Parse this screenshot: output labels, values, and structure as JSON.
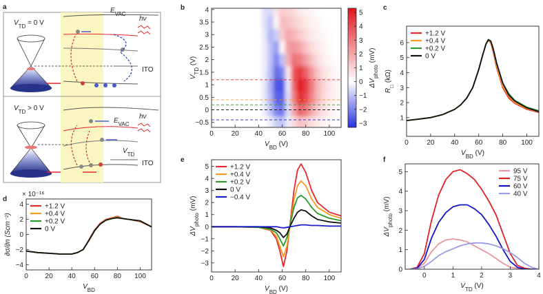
{
  "diagram": {
    "panel": "a",
    "top": {
      "vtd": [
        "V",
        "TD",
        " = 0 V"
      ],
      "evac": [
        "E",
        "VAC"
      ],
      "hv": "hν",
      "ito": "ITO"
    },
    "bottom": {
      "vtd": [
        "V",
        "TD",
        " > 0 V"
      ],
      "evac": [
        "E",
        "VAC"
      ],
      "hv": "hν",
      "vtd_label": [
        "V",
        "TD"
      ],
      "ito": "ITO"
    }
  },
  "chart_data": [
    {
      "panel": "b",
      "type": "heatmap",
      "x": [
        0,
        5,
        10,
        15,
        20,
        25,
        30,
        35,
        40,
        45,
        50,
        55,
        60,
        65,
        70,
        75,
        80,
        85,
        90,
        95,
        100,
        105,
        110
      ],
      "y": [
        -0.5,
        0,
        0.5,
        1,
        1.5,
        2,
        2.5,
        3,
        3.5,
        4
      ],
      "z": [
        [
          0,
          0,
          0,
          0,
          0,
          0,
          0,
          0,
          0,
          0,
          -0.3,
          -0.8,
          -1.0,
          -0.3,
          0.8,
          1.5,
          1.2,
          0.8,
          0.5,
          0.3,
          0.2,
          0.1,
          0
        ],
        [
          0,
          0,
          0,
          0,
          0,
          0,
          0,
          0,
          0,
          -0.3,
          -1.0,
          -2.0,
          -2.2,
          -0.5,
          2.0,
          3.5,
          3.0,
          2.0,
          1.2,
          0.7,
          0.4,
          0.2,
          0.1
        ],
        [
          0,
          0,
          0,
          0,
          0,
          0,
          0,
          0,
          0,
          -0.4,
          -1.2,
          -2.5,
          -2.6,
          -0.5,
          3.0,
          4.8,
          4.2,
          2.8,
          1.6,
          0.9,
          0.5,
          0.3,
          0.1
        ],
        [
          0,
          0,
          0,
          0,
          0,
          0,
          0,
          0,
          0,
          -0.4,
          -1.3,
          -2.7,
          -2.8,
          -0.3,
          3.5,
          5.2,
          4.5,
          3.0,
          1.7,
          1.0,
          0.6,
          0.3,
          0.1
        ],
        [
          0,
          0,
          0,
          0,
          0,
          0,
          0,
          0,
          0,
          -0.3,
          -1.1,
          -2.4,
          -2.0,
          0.5,
          3.8,
          4.5,
          3.6,
          2.3,
          1.3,
          0.7,
          0.4,
          0.2,
          0.1
        ],
        [
          0,
          0,
          0,
          0,
          0,
          0,
          0,
          0,
          0,
          -0.3,
          -1.0,
          -2.0,
          -1.0,
          1.8,
          3.2,
          3.0,
          2.2,
          1.4,
          0.8,
          0.4,
          0.2,
          0.1,
          0
        ],
        [
          0,
          0,
          0,
          0,
          0,
          0,
          0,
          0,
          0,
          -0.3,
          -1.0,
          -1.6,
          0.2,
          2.2,
          2.4,
          2.0,
          1.4,
          0.8,
          0.5,
          0.3,
          0.1,
          0,
          0
        ],
        [
          0,
          0,
          0,
          0,
          0,
          0,
          0,
          0,
          0,
          -0.4,
          -1.2,
          -0.8,
          1.2,
          2.0,
          1.6,
          1.2,
          0.8,
          0.5,
          0.3,
          0.2,
          0.1,
          0,
          0
        ],
        [
          0,
          0,
          0,
          0,
          0,
          0,
          0,
          0,
          0,
          -0.5,
          -1.0,
          0.2,
          1.5,
          1.4,
          1.1,
          0.8,
          0.5,
          0.3,
          0.2,
          0.1,
          0,
          0,
          0
        ],
        [
          0,
          0,
          0,
          0,
          0,
          0,
          0,
          0,
          0,
          -0.5,
          -0.6,
          0.6,
          1.2,
          1.0,
          0.8,
          0.5,
          0.3,
          0.2,
          0.1,
          0,
          0,
          0,
          0
        ]
      ],
      "hlines": [
        {
          "value": 1.2,
          "color": "#e8262b"
        },
        {
          "value": 0.4,
          "color": "#f59a23"
        },
        {
          "value": 0.2,
          "color": "#2a9a2a"
        },
        {
          "value": 0,
          "color": "#222222"
        },
        {
          "value": -0.4,
          "color": "#1c1ccc"
        }
      ],
      "xlim": [
        0,
        110
      ],
      "ylim": [
        -0.7,
        4.05
      ],
      "xticks": [
        0,
        20,
        40,
        60,
        80,
        100
      ],
      "yticks": [
        {
          "value": -0.5,
          "label": "−0.5"
        },
        0,
        0.5,
        1,
        1.5,
        2,
        2.5,
        3,
        3.5,
        4
      ],
      "xlabel": [
        "V",
        "BD",
        " (V)"
      ],
      "ylabel": [
        "V",
        "TD",
        " (V)"
      ],
      "clim": [
        -3.3,
        5.3
      ],
      "cticks": [
        {
          "value": -3,
          "label": "−3"
        },
        {
          "value": -2,
          "label": "−2"
        },
        {
          "value": -1,
          "label": "−1"
        },
        0,
        1,
        2,
        3,
        4,
        5
      ],
      "clabel": [
        "ΔV",
        "photo",
        " (mV)"
      ]
    },
    {
      "panel": "c",
      "type": "line",
      "x": [
        0,
        10,
        20,
        30,
        40,
        45,
        50,
        55,
        60,
        63,
        66,
        68,
        70,
        72,
        75,
        80,
        85,
        90,
        100,
        110
      ],
      "series": [
        {
          "name": "+1.2 V",
          "color": "#e8262b",
          "values": [
            0.8,
            0.9,
            1.0,
            1.2,
            1.55,
            1.85,
            2.3,
            3.0,
            4.2,
            5.1,
            5.9,
            6.15,
            6.0,
            5.4,
            4.3,
            3.0,
            2.3,
            1.95,
            1.55,
            1.35
          ]
        },
        {
          "name": "+0.4 V",
          "color": "#f59a23",
          "values": [
            0.8,
            0.9,
            1.0,
            1.2,
            1.55,
            1.85,
            2.3,
            3.0,
            4.2,
            5.1,
            5.9,
            6.15,
            6.05,
            5.5,
            4.4,
            3.1,
            2.4,
            2.0,
            1.6,
            1.38
          ]
        },
        {
          "name": "+0.2 V",
          "color": "#2a9a2a",
          "values": [
            0.8,
            0.9,
            1.0,
            1.2,
            1.55,
            1.85,
            2.3,
            3.0,
            4.2,
            5.1,
            5.9,
            6.2,
            6.1,
            5.6,
            4.6,
            3.3,
            2.6,
            2.15,
            1.7,
            1.45
          ]
        },
        {
          "name": "0 V",
          "color": "#111111",
          "values": [
            0.8,
            0.9,
            1.0,
            1.2,
            1.55,
            1.85,
            2.3,
            3.0,
            4.2,
            5.1,
            5.9,
            6.2,
            6.1,
            5.6,
            4.6,
            3.3,
            2.5,
            2.1,
            1.65,
            1.4
          ]
        }
      ],
      "xlim": [
        0,
        110
      ],
      "ylim": [
        -0.25,
        7.1
      ],
      "xticks": [
        0,
        20,
        40,
        60,
        80,
        100
      ],
      "yticks": [
        1,
        2,
        3,
        4,
        5,
        6
      ],
      "xlabel": [
        "V",
        "BD",
        " (V)"
      ],
      "ylabel": [
        "R",
        "□",
        " (kΩ)"
      ],
      "legend": "upper left"
    },
    {
      "panel": "d",
      "type": "line",
      "x": [
        0,
        10,
        20,
        30,
        40,
        45,
        50,
        55,
        60,
        65,
        70,
        75,
        80,
        85,
        90,
        100,
        110
      ],
      "series": [
        {
          "name": "+1.2 V",
          "color": "#e8262b",
          "values": [
            -2.2,
            -2.4,
            -2.5,
            -2.6,
            -2.6,
            -2.4,
            -2.0,
            -0.7,
            0.6,
            1.5,
            2.0,
            2.2,
            2.4,
            2.1,
            2.0,
            1.7,
            1.0
          ]
        },
        {
          "name": "+0.4 V",
          "color": "#f59a23",
          "values": [
            -2.2,
            -2.4,
            -2.5,
            -2.6,
            -2.6,
            -2.4,
            -2.0,
            -0.75,
            0.55,
            1.45,
            1.95,
            2.15,
            2.3,
            2.1,
            2.0,
            1.75,
            1.0
          ]
        },
        {
          "name": "+0.2 V",
          "color": "#2a9a2a",
          "values": [
            -2.2,
            -2.4,
            -2.5,
            -2.6,
            -2.6,
            -2.4,
            -2.0,
            -0.8,
            0.5,
            1.4,
            1.9,
            2.1,
            2.25,
            2.1,
            2.0,
            1.8,
            1.0
          ]
        },
        {
          "name": "0 V",
          "color": "#111111",
          "values": [
            -2.2,
            -2.4,
            -2.5,
            -2.6,
            -2.6,
            -2.4,
            -2.0,
            -0.8,
            0.5,
            1.4,
            1.9,
            2.1,
            2.2,
            2.1,
            2.0,
            1.8,
            1.0
          ]
        }
      ],
      "xlim": [
        0,
        110
      ],
      "ylim": [
        -4.7,
        4.7
      ],
      "xticks": [
        0,
        20,
        40,
        60,
        80,
        100
      ],
      "yticks": [
        {
          "value": -4,
          "label": "−4"
        },
        {
          "value": -2,
          "label": "−2"
        },
        0,
        2,
        4
      ],
      "multiplier": "× 10⁻¹⁶",
      "xlabel": [
        "V",
        "BD",
        ""
      ],
      "ylabel": [
        "∂σ/∂n (Scm⁻²)"
      ],
      "legend": "upper left"
    },
    {
      "panel": "e",
      "type": "line",
      "x": [
        0,
        20,
        40,
        50,
        55,
        58,
        61,
        64,
        67,
        70,
        73,
        76,
        80,
        85,
        90,
        100,
        110
      ],
      "series": [
        {
          "name": "+1.2 V",
          "color": "#e8262b",
          "values": [
            0,
            0,
            -0.05,
            -0.3,
            -1.0,
            -2.0,
            -3.3,
            -2.0,
            0.5,
            3.0,
            4.7,
            5.2,
            4.5,
            3.0,
            2.0,
            1.2,
            0.9
          ]
        },
        {
          "name": "+0.4 V",
          "color": "#f59a23",
          "values": [
            0,
            0,
            -0.05,
            -0.25,
            -0.8,
            -1.6,
            -2.5,
            -1.6,
            0.3,
            2.2,
            3.4,
            3.8,
            3.4,
            2.3,
            1.6,
            1.0,
            0.7
          ]
        },
        {
          "name": "+0.2 V",
          "color": "#2a9a2a",
          "values": [
            0,
            0,
            -0.05,
            -0.2,
            -0.5,
            -1.0,
            -1.6,
            -0.9,
            0.3,
            1.6,
            2.4,
            2.6,
            2.3,
            1.6,
            1.1,
            0.7,
            0.5
          ]
        },
        {
          "name": "0 V",
          "color": "#111111",
          "values": [
            0,
            0,
            0,
            -0.1,
            -0.3,
            -0.5,
            -0.9,
            -0.6,
            0.1,
            0.7,
            1.2,
            1.4,
            1.3,
            0.9,
            0.6,
            0.4,
            0.3
          ]
        },
        {
          "name": "−0.4 V",
          "color": "#1c1ccc",
          "values": [
            0,
            0,
            0,
            0,
            0,
            -0.05,
            -0.1,
            -0.05,
            0,
            0.05,
            0.1,
            0.15,
            0.15,
            0.1,
            0.1,
            0.05,
            0.05
          ]
        }
      ],
      "xlim": [
        0,
        110
      ],
      "ylim": [
        -3.75,
        5.55
      ],
      "xticks": [
        0,
        20,
        40,
        60,
        80,
        100
      ],
      "yticks": [
        {
          "value": -3,
          "label": "−3"
        },
        {
          "value": -2,
          "label": "−2"
        },
        {
          "value": -1,
          "label": "−1"
        },
        0,
        1,
        2,
        3,
        4,
        5
      ],
      "xlabel": [
        "V",
        "BD",
        " (V)"
      ],
      "ylabel": [
        "ΔV",
        "photo",
        " (mV)"
      ],
      "legend": "upper left"
    },
    {
      "panel": "f",
      "type": "line",
      "x": [
        -0.5,
        -0.25,
        0,
        0.25,
        0.5,
        0.75,
        1,
        1.25,
        1.5,
        1.75,
        2,
        2.25,
        2.5,
        2.75,
        3,
        3.25,
        3.5,
        3.75,
        4
      ],
      "series": [
        {
          "name": "95 V",
          "color": "#e8959c",
          "values": [
            0,
            0.05,
            0.3,
            0.9,
            1.3,
            1.5,
            1.55,
            1.5,
            1.4,
            1.2,
            1.0,
            0.8,
            0.55,
            0.3,
            0.1,
            0.05,
            0,
            0,
            0
          ]
        },
        {
          "name": "75 V",
          "color": "#e01f26",
          "values": [
            0,
            0.1,
            0.8,
            2.5,
            3.8,
            4.6,
            5.0,
            5.1,
            4.9,
            4.6,
            4.1,
            3.5,
            2.8,
            1.8,
            0.8,
            0.2,
            0.05,
            0,
            0
          ]
        },
        {
          "name": "60 V",
          "color": "#1414c8",
          "values": [
            0,
            0.05,
            0.5,
            1.6,
            2.4,
            2.9,
            3.2,
            3.3,
            3.3,
            3.1,
            2.8,
            2.3,
            1.7,
            1.0,
            0.4,
            0.1,
            0,
            0,
            0
          ]
        },
        {
          "name": "40 V",
          "color": "#9a9ae8",
          "values": [
            0,
            0.02,
            0.15,
            0.4,
            0.7,
            0.9,
            1.05,
            1.2,
            1.3,
            1.35,
            1.35,
            1.3,
            1.2,
            1.05,
            0.85,
            0.6,
            0.3,
            0.1,
            0
          ]
        }
      ],
      "xlim": [
        -0.67,
        4
      ],
      "ylim": [
        0,
        5.4
      ],
      "xticks": [
        0,
        1,
        2,
        3,
        4
      ],
      "yticks": [
        0,
        1,
        2,
        3,
        4,
        5
      ],
      "xlabel": [
        "V",
        "TD",
        " (V)"
      ],
      "ylabel": [
        "ΔV",
        "photo",
        " (mV)"
      ],
      "legend": "upper right"
    }
  ]
}
